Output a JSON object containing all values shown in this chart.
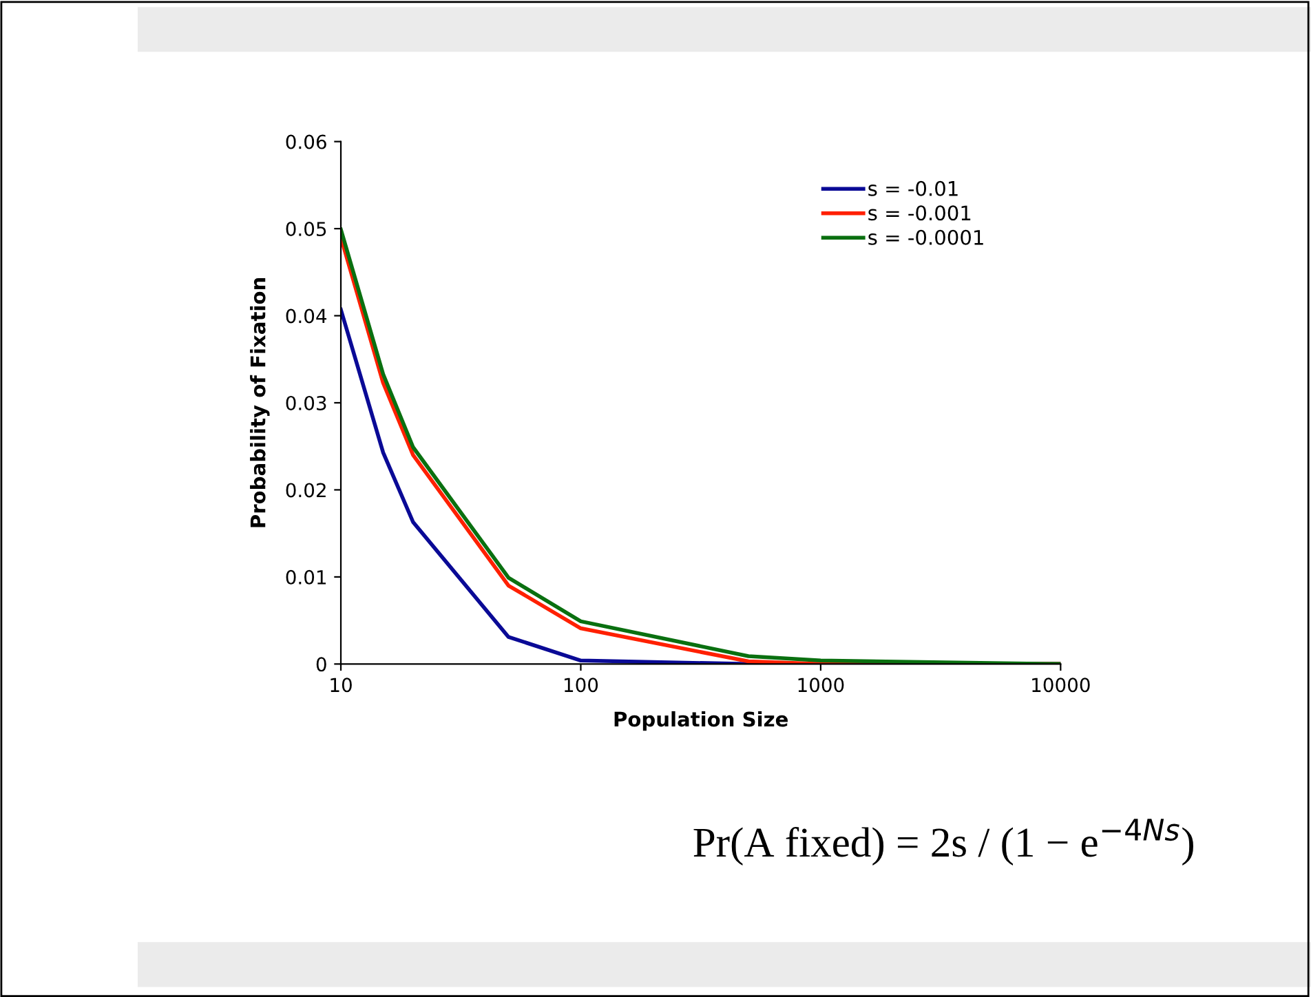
{
  "chart_data": {
    "type": "line",
    "xlabel": "Population Size",
    "ylabel": "Probability of Fixation",
    "x": [
      10,
      15,
      20,
      50,
      100,
      500,
      1000,
      10000
    ],
    "series": [
      {
        "name": "s = -0.01",
        "color": "#0a0a96",
        "values": [
          0.0407,
          0.0243,
          0.0163,
          0.0031,
          0.0004,
          0,
          0,
          0
        ]
      },
      {
        "name": "s = -0.001",
        "color": "#ff2000",
        "values": [
          0.049,
          0.0323,
          0.024,
          0.009,
          0.0041,
          0.0003,
          0,
          0
        ]
      },
      {
        "name": "s = -0.0001",
        "color": "#0a7010",
        "values": [
          0.0499,
          0.0333,
          0.0249,
          0.0099,
          0.0049,
          0.0009,
          0.0004,
          0
        ]
      }
    ],
    "log": "x",
    "xlim": [
      10,
      10000
    ],
    "xticks": [
      10,
      100,
      1000,
      10000
    ],
    "ylim": [
      0,
      0.06
    ],
    "yticks": [
      0,
      0.01,
      0.02,
      0.03,
      0.04,
      0.05,
      0.06
    ],
    "grid": false,
    "legend": "top right",
    "line_style": "solid",
    "marker": "none",
    "annotations": [
      "Pr(A fixed) = 2s / (1 − e$^{−4Ns}$)"
    ]
  }
}
